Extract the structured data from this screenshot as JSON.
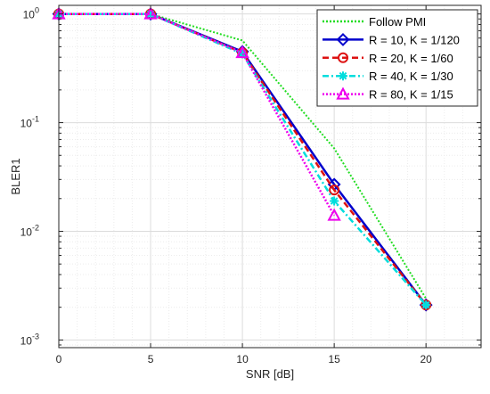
{
  "chart_data": {
    "type": "line",
    "xlabel": "SNR [dB]",
    "ylabel": "BLER1",
    "yscale": "log",
    "xlim": [
      0,
      23
    ],
    "ylim": [
      0.00085,
      1.2
    ],
    "x_ticks": [
      0,
      5,
      10,
      15,
      20
    ],
    "y_ticks": [
      {
        "value": 1,
        "base": "10",
        "exp": "0"
      },
      {
        "value": 0.1,
        "base": "10",
        "exp": "-1"
      },
      {
        "value": 0.01,
        "base": "10",
        "exp": "-2"
      },
      {
        "value": 0.001,
        "base": "10",
        "exp": "-3"
      }
    ],
    "grid": true,
    "minor_grid": true,
    "legend_position": "top-right",
    "series": [
      {
        "name": "Follow PMI",
        "color": "#22dd22",
        "style": "dotted",
        "marker": "none",
        "x": [
          0,
          5,
          10,
          15,
          20
        ],
        "y": [
          1.0,
          1.0,
          0.57,
          0.058,
          0.0024
        ]
      },
      {
        "name": "R = 10, K = 1/120",
        "color": "#0000cc",
        "style": "solid",
        "marker": "diamond",
        "x": [
          0,
          5,
          10,
          15,
          20
        ],
        "y": [
          1.0,
          1.0,
          0.45,
          0.027,
          0.0021
        ]
      },
      {
        "name": "R = 20, K = 1/60",
        "color": "#dd1111",
        "style": "dashed",
        "marker": "circle",
        "x": [
          0,
          5,
          10,
          15,
          20
        ],
        "y": [
          1.0,
          1.0,
          0.44,
          0.024,
          0.0021
        ]
      },
      {
        "name": "R = 40, K = 1/30",
        "color": "#00dddd",
        "style": "dashdot",
        "marker": "asterisk",
        "x": [
          0,
          5,
          10,
          15,
          20
        ],
        "y": [
          1.0,
          1.0,
          0.43,
          0.019,
          0.0021
        ]
      },
      {
        "name": "R = 80, K = 1/15",
        "color": "#ee00ee",
        "style": "dotted",
        "marker": "triangle",
        "x": [
          0,
          5,
          10,
          15
        ],
        "y": [
          1.0,
          1.0,
          0.44,
          0.014
        ]
      }
    ]
  }
}
